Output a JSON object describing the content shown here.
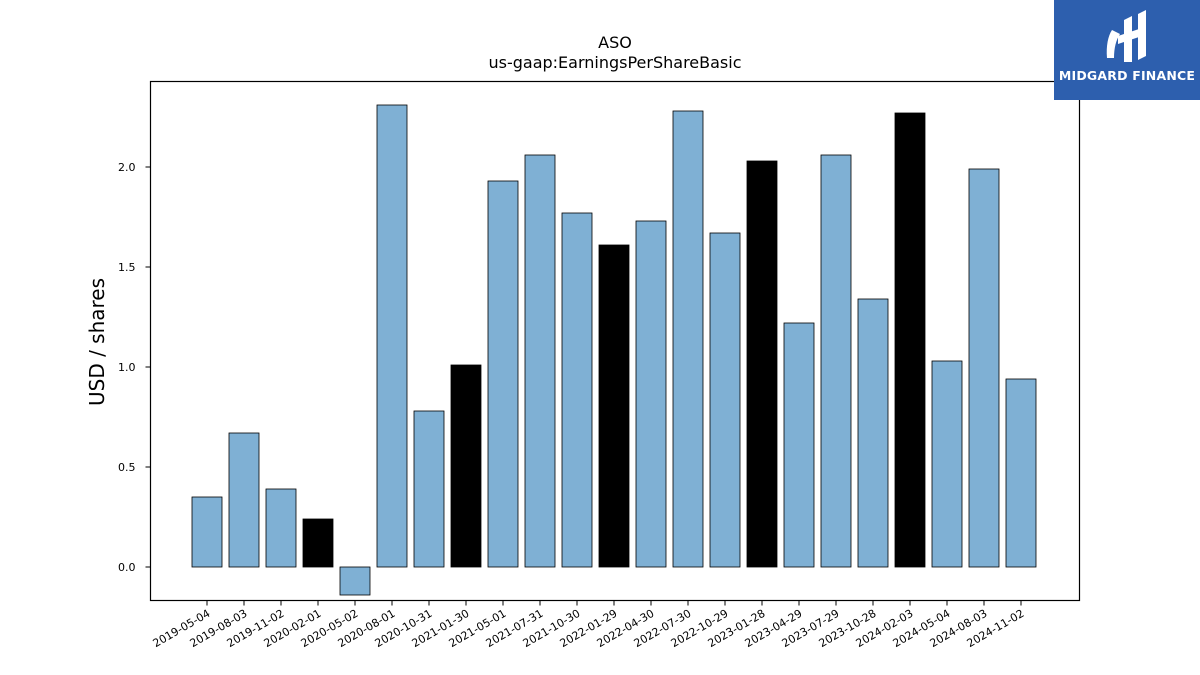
{
  "chart_data": {
    "type": "bar",
    "title": "ASO",
    "subtitle": "us-gaap:EarningsPerShareBasic",
    "xlabel": "",
    "ylabel": "USD / shares",
    "ylim": [
      -0.15,
      2.42
    ],
    "yticks": [
      "0.0",
      "0.5",
      "1.0",
      "1.5",
      "2.0"
    ],
    "grid": false,
    "categories": [
      "2019-05-04",
      "2019-08-03",
      "2019-11-02",
      "2020-02-01",
      "2020-05-02",
      "2020-08-01",
      "2020-10-31",
      "2021-01-30",
      "2021-05-01",
      "2021-07-31",
      "2021-10-30",
      "2022-01-29",
      "2022-04-30",
      "2022-07-30",
      "2022-10-29",
      "2023-01-28",
      "2023-04-29",
      "2023-07-29",
      "2023-10-28",
      "2024-02-03",
      "2024-05-04",
      "2024-08-03",
      "2024-11-02"
    ],
    "values": [
      0.35,
      0.67,
      0.39,
      0.24,
      -0.14,
      2.31,
      0.78,
      1.01,
      1.93,
      2.06,
      1.77,
      1.61,
      1.73,
      2.28,
      1.67,
      2.03,
      1.22,
      2.06,
      1.34,
      2.27,
      1.03,
      1.99,
      0.94
    ],
    "highlight": [
      false,
      false,
      false,
      true,
      false,
      false,
      false,
      true,
      false,
      false,
      false,
      true,
      false,
      false,
      false,
      true,
      false,
      false,
      false,
      true,
      false,
      false,
      false
    ],
    "colors": {
      "bar": "#7fb0d4",
      "highlight": "#000000",
      "edge": "#000000"
    }
  },
  "logo": {
    "text": "MIDGARD FINANCE",
    "icon": "midgard-logo-icon"
  }
}
